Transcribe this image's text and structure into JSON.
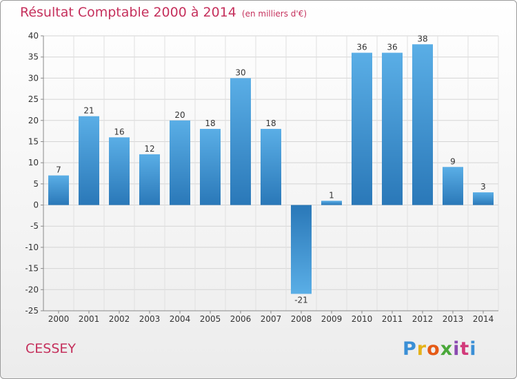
{
  "header": {
    "title": "Résultat Comptable 2000 à 2014",
    "subtitle": "(en milliers d'€)"
  },
  "footer": {
    "commune": "CESSEY",
    "logo_text": "Proxiti"
  },
  "chart_data": {
    "type": "bar",
    "title": "Résultat Comptable 2000 à 2014",
    "subtitle": "(en milliers d'€)",
    "categories": [
      "2000",
      "2001",
      "2002",
      "2003",
      "2004",
      "2005",
      "2006",
      "2007",
      "2008",
      "2009",
      "2010",
      "2011",
      "2012",
      "2013",
      "2014"
    ],
    "values": [
      7,
      21,
      16,
      12,
      20,
      18,
      30,
      18,
      -21,
      1,
      36,
      36,
      38,
      9,
      3
    ],
    "ylim": [
      -25,
      40
    ],
    "yticks": [
      40,
      35,
      30,
      25,
      20,
      15,
      10,
      5,
      0,
      -5,
      -10,
      -15,
      -20,
      -25
    ],
    "grid": true,
    "legend": "none",
    "bar_color_light": "#5aaee6",
    "bar_color_dark": "#2a78b8",
    "title_color": "#c5305c"
  }
}
